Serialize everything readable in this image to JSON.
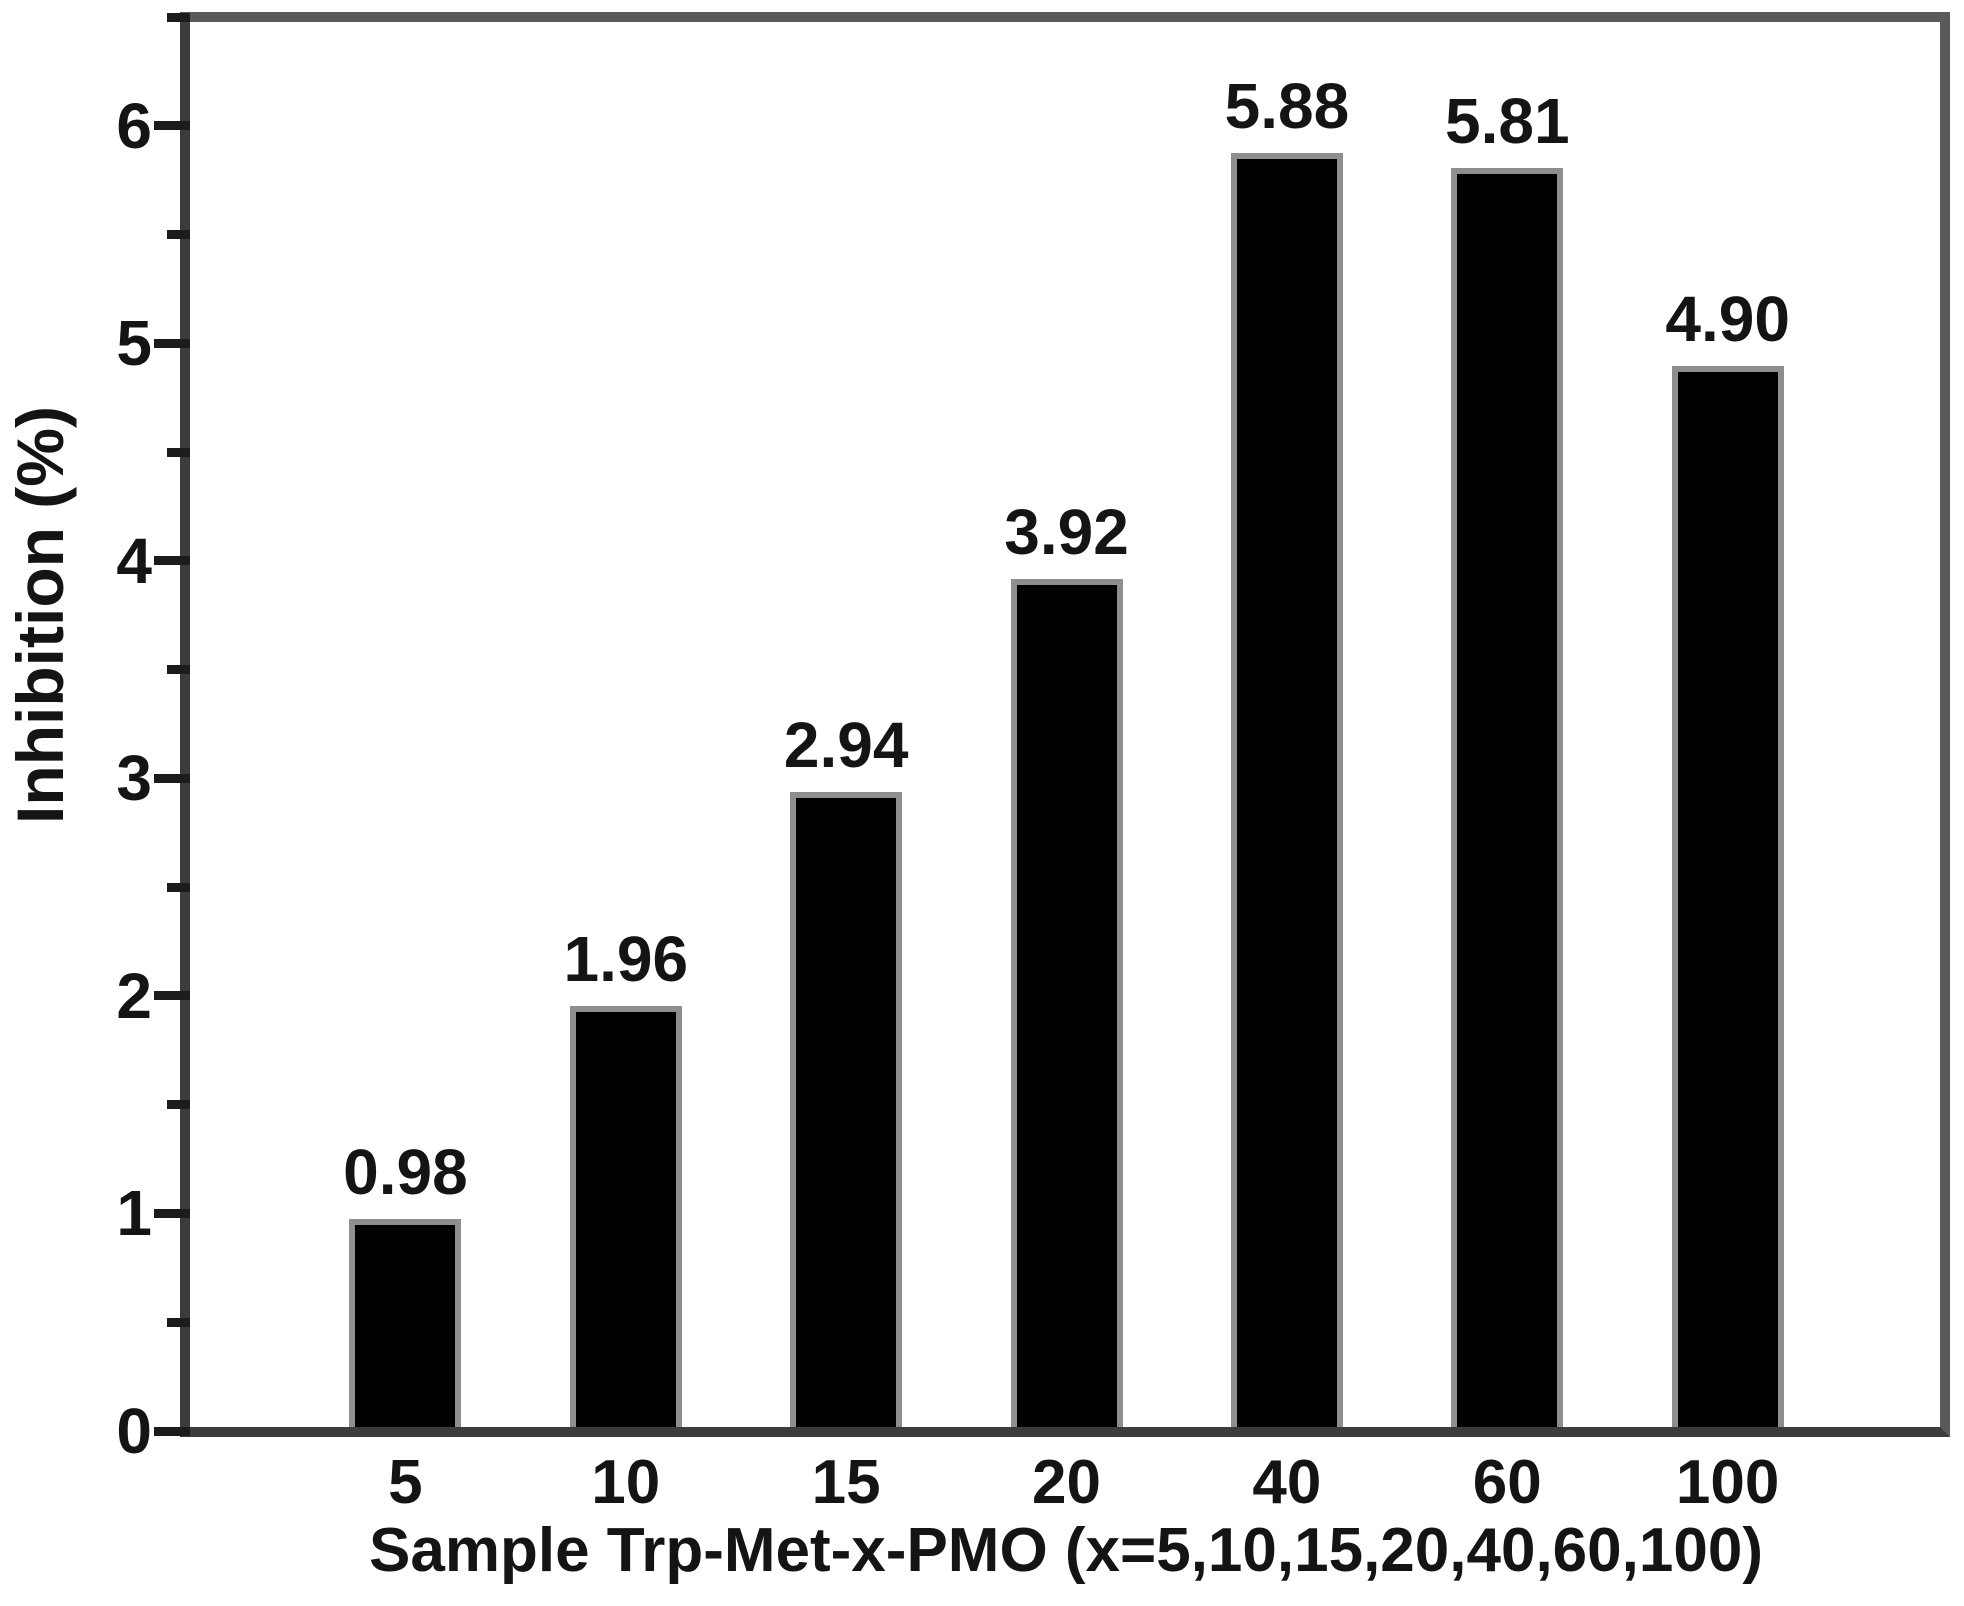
{
  "chart_data": {
    "type": "bar",
    "title": "",
    "xlabel": "Sample Trp-Met-x-PMO (x=5,10,15,20,40,60,100)",
    "ylabel": "Inhibition (%)",
    "categories": [
      "5",
      "10",
      "15",
      "20",
      "40",
      "60",
      "100"
    ],
    "values": [
      0.98,
      1.96,
      2.94,
      3.92,
      5.88,
      5.81,
      4.9
    ],
    "value_labels": [
      "0.98",
      "1.96",
      "2.94",
      "3.92",
      "5.88",
      "5.81",
      "4.90"
    ],
    "ylim": [
      0,
      6.5
    ],
    "yticks": [
      0,
      1,
      2,
      3,
      4,
      5,
      6
    ],
    "minor_tick_step": 0.5,
    "grid": false,
    "legend_position": "none",
    "colors": {
      "bar_fill": "#000000",
      "bar_edge": "#8e8e8e",
      "axis_frame": "#4a4a4a",
      "tick": "#1c1c1c",
      "text": "#141414",
      "background": "#ffffff"
    }
  }
}
